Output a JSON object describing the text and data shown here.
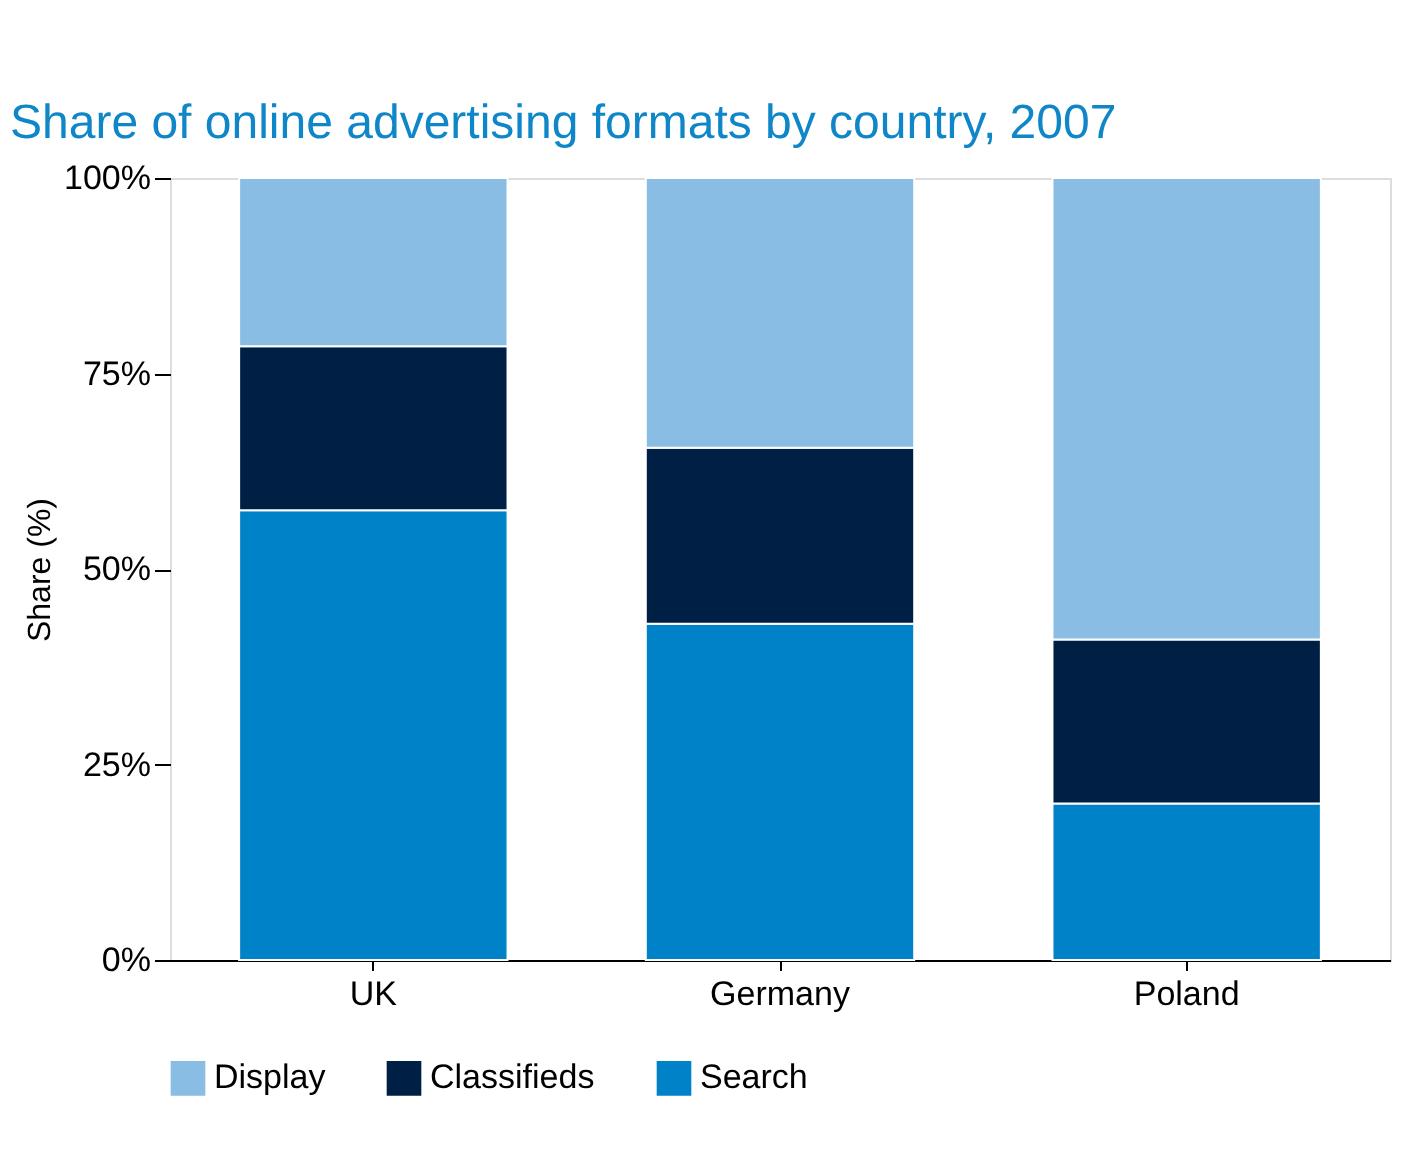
{
  "chart_data": {
    "type": "bar",
    "stacked": true,
    "title": "Share of online advertising formats by country, 2007",
    "ylabel": "Share (%)",
    "categories": [
      "UK",
      "Germany",
      "Poland"
    ],
    "series": [
      {
        "name": "Search",
        "color": "#0082c8",
        "values": [
          57.5,
          43,
          20
        ]
      },
      {
        "name": "Classifieds",
        "color": "#001f45",
        "values": [
          21,
          22.5,
          21
        ]
      },
      {
        "name": "Display",
        "color": "#8abde3",
        "values": [
          21.5,
          34.5,
          59
        ]
      }
    ],
    "ylim": [
      0,
      100
    ],
    "yticks": [
      {
        "value": 0,
        "label": "0%"
      },
      {
        "value": 25,
        "label": "25%"
      },
      {
        "value": 50,
        "label": "50%"
      },
      {
        "value": 75,
        "label": "75%"
      },
      {
        "value": 100,
        "label": "100%"
      }
    ],
    "grid": false,
    "legend": "bottom"
  }
}
